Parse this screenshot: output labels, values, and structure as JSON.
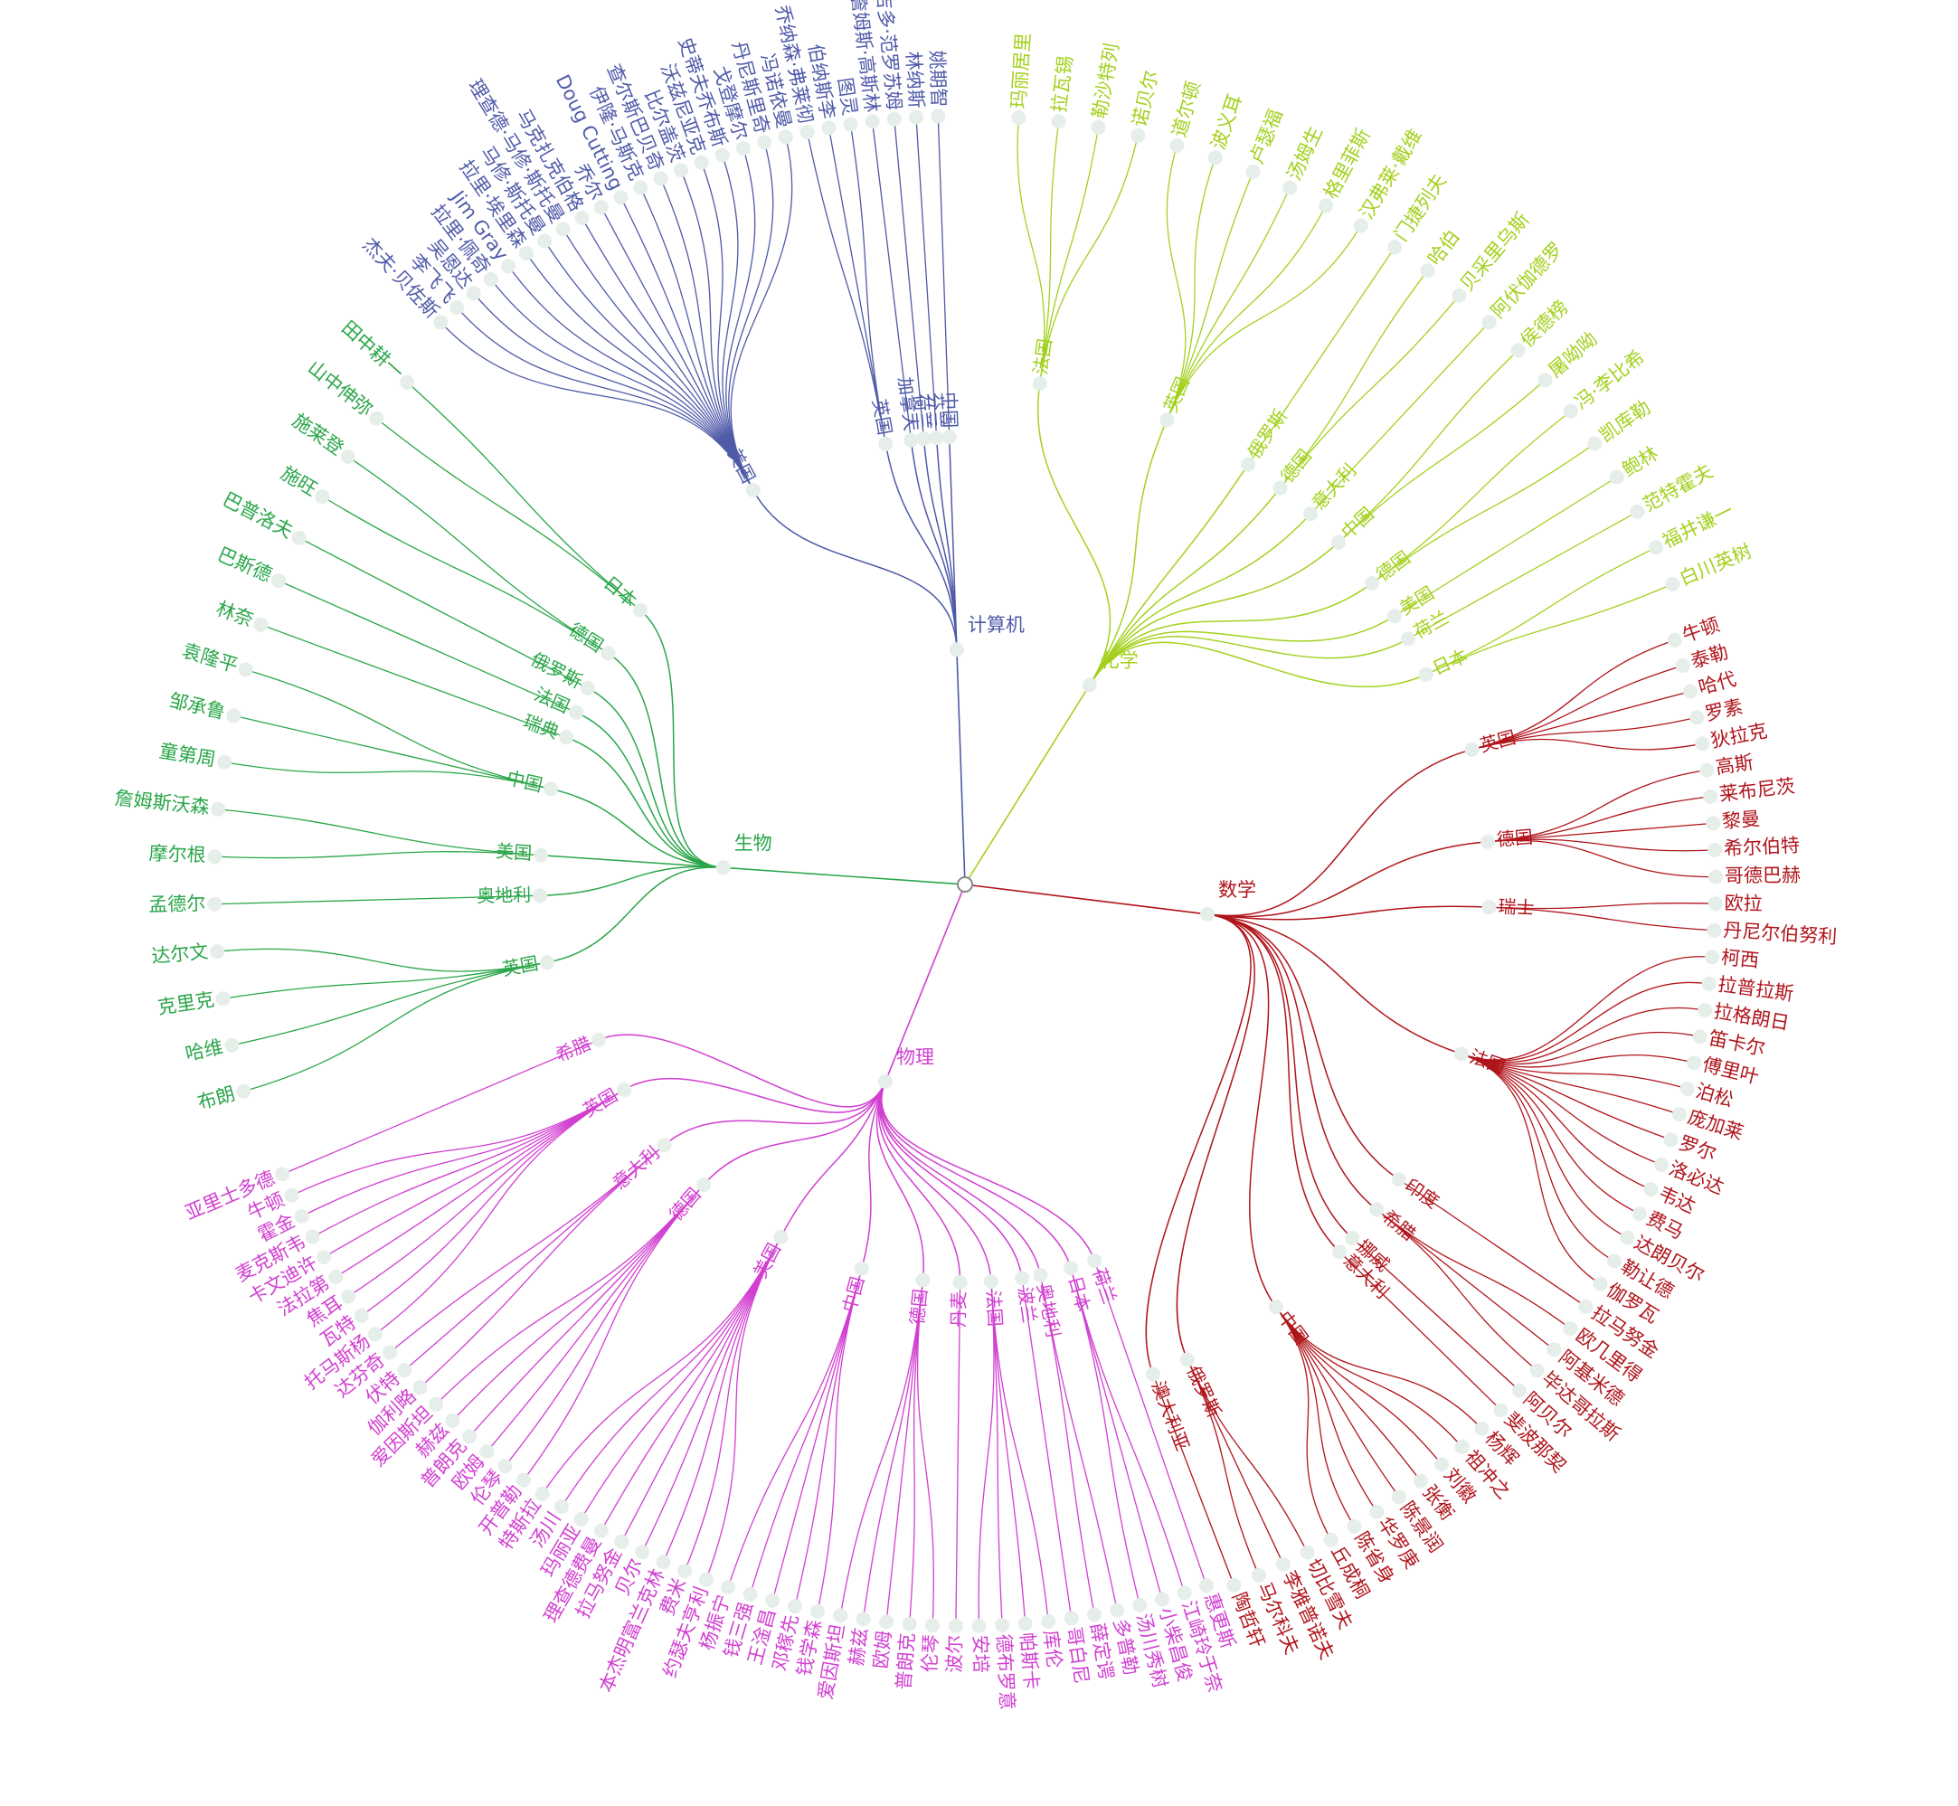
{
  "tree": {
    "root": "",
    "branches": [
      {
        "name": "计算机",
        "color": "#4f5aa8",
        "groups": [
          {
            "name": "美国",
            "leaves": [
              "杰夫·贝佐斯",
              "李飞飞",
              "吴恩达",
              "拉里·佩奇",
              "Jim Gray",
              "拉里·埃里森",
              "马修·斯托曼",
              "理查德·马修·斯托曼",
              "马克扎克伯格",
              "乔尔",
              "Doug Cutting",
              "伊隆·马斯克",
              "查尔斯巴贝奇",
              "比尔盖茨",
              "沃兹尼亚克",
              "史蒂夫乔布斯",
              "戈登摩尔",
              "丹尼斯里奇",
              "冯诺依曼"
            ]
          },
          {
            "name": "英国",
            "leaves": [
              "乔纳森·弗莱彻",
              "伯纳斯李",
              "图灵"
            ]
          },
          {
            "name": "加拿大",
            "leaves": [
              "詹姆斯·高斯林"
            ]
          },
          {
            "name": "荷兰",
            "leaves": [
              "吉多·范罗苏姆"
            ]
          },
          {
            "name": "芬兰",
            "leaves": [
              "林纳斯"
            ]
          },
          {
            "name": "中国",
            "leaves": [
              "姚期智"
            ]
          }
        ]
      },
      {
        "name": "化学",
        "color": "#a3d11e",
        "groups": [
          {
            "name": "法国",
            "leaves": [
              "玛丽居里",
              "拉瓦锡",
              "勒沙特列",
              "诺贝尔"
            ]
          },
          {
            "name": "英国",
            "leaves": [
              "道尔顿",
              "波义耳",
              "卢瑟福",
              "汤姆生",
              "格里菲斯",
              "汉弗莱·戴维"
            ]
          },
          {
            "name": "俄罗斯",
            "leaves": [
              "门捷列夫"
            ]
          },
          {
            "name": "德国",
            "leaves": [
              "哈伯",
              "贝采里乌斯"
            ]
          },
          {
            "name": "意大利",
            "leaves": [
              "阿伏伽德罗"
            ]
          },
          {
            "name": "中国",
            "leaves": [
              "侯德榜",
              "屠呦呦"
            ]
          },
          {
            "name": "德国",
            "leaves": [
              "冯·李比希",
              "凯库勒"
            ]
          },
          {
            "name": "美国",
            "leaves": [
              "鲍林"
            ]
          },
          {
            "name": "荷兰",
            "leaves": [
              "范特霍夫"
            ]
          },
          {
            "name": "日本",
            "leaves": [
              "福井谦一",
              "白川英树"
            ]
          }
        ]
      },
      {
        "name": "数学",
        "color": "#b0141b",
        "groups": [
          {
            "name": "英国",
            "leaves": [
              "牛顿",
              "泰勒",
              "哈代",
              "罗素",
              "狄拉克"
            ]
          },
          {
            "name": "德国",
            "leaves": [
              "高斯",
              "莱布尼茨",
              "黎曼",
              "希尔伯特",
              "哥德巴赫"
            ]
          },
          {
            "name": "瑞士",
            "leaves": [
              "欧拉",
              "丹尼尔伯努利"
            ]
          },
          {
            "name": "法国",
            "leaves": [
              "柯西",
              "拉普拉斯",
              "拉格朗日",
              "笛卡尔",
              "傅里叶",
              "泊松",
              "庞加莱",
              "罗尔",
              "洛必达",
              "韦达",
              "费马",
              "达朗贝尔",
              "勒让德",
              "伽罗瓦"
            ]
          },
          {
            "name": "印度",
            "leaves": [
              "拉马努金"
            ]
          },
          {
            "name": "希腊",
            "leaves": [
              "欧几里得",
              "阿基米德",
              "毕达哥拉斯"
            ]
          },
          {
            "name": "挪威",
            "leaves": [
              "阿贝尔"
            ]
          },
          {
            "name": "意大利",
            "leaves": [
              "斐波那契"
            ]
          },
          {
            "name": "中国",
            "leaves": [
              "杨辉",
              "祖冲之",
              "刘徽",
              "张衡",
              "陈景润",
              "华罗庚",
              "陈省身",
              "丘成桐"
            ]
          },
          {
            "name": "俄罗斯",
            "leaves": [
              "切比雪夫",
              "李雅普诺夫",
              "马尔科夫"
            ]
          },
          {
            "name": "澳大利亚",
            "leaves": [
              "陶哲轩"
            ]
          }
        ]
      },
      {
        "name": "物理",
        "color": "#d13fd1",
        "groups": [
          {
            "name": "荷兰",
            "leaves": [
              "惠更斯"
            ]
          },
          {
            "name": "日本",
            "leaves": [
              "江崎玲于奈",
              "小柴昌俊",
              "汤川秀树"
            ]
          },
          {
            "name": "奥地利",
            "leaves": [
              "多普勒",
              "薛定谔"
            ]
          },
          {
            "name": "波兰",
            "leaves": [
              "哥白尼"
            ]
          },
          {
            "name": "法国",
            "leaves": [
              "库伦",
              "帕斯卡",
              "德布罗意",
              "安培"
            ]
          },
          {
            "name": "丹麦",
            "leaves": [
              "波尔"
            ]
          },
          {
            "name": "德国",
            "leaves": [
              "伦琴",
              "普朗克",
              "欧姆",
              "赫兹",
              "爱因斯坦"
            ]
          },
          {
            "name": "中国",
            "leaves": [
              "钱学森",
              "邓稼先",
              "王淦昌",
              "钱三强",
              "杨振宁"
            ]
          },
          {
            "name": "美国",
            "leaves": [
              "约瑟夫亨利",
              "费米",
              "本杰明富兰克林",
              "贝尔",
              "拉马努金",
              "理查德费曼",
              "玛丽亚",
              "汤川",
              "特斯拉"
            ]
          },
          {
            "name": "德国",
            "leaves": [
              "开普勒",
              "伦琴",
              "欧姆",
              "普朗克",
              "赫兹",
              "爱因斯坦"
            ]
          },
          {
            "name": "意大利",
            "leaves": [
              "伽利略",
              "伏特",
              "达芬奇"
            ]
          },
          {
            "name": "英国",
            "leaves": [
              "托马斯杨",
              "瓦特",
              "焦耳",
              "法拉第",
              "卡文迪许",
              "麦克斯韦",
              "霍金",
              "牛顿"
            ]
          },
          {
            "name": "希腊",
            "leaves": [
              "亚里士多德"
            ]
          }
        ]
      },
      {
        "name": "生物",
        "color": "#2aa649",
        "groups": [
          {
            "name": "英国",
            "leaves": [
              "布朗",
              "哈维",
              "克里克",
              "达尔文"
            ]
          },
          {
            "name": "奥地利",
            "leaves": [
              "孟德尔"
            ]
          },
          {
            "name": "美国",
            "leaves": [
              "摩尔根",
              "詹姆斯沃森"
            ]
          },
          {
            "name": "中国",
            "leaves": [
              "童第周",
              "邹承鲁",
              "袁隆平"
            ]
          },
          {
            "name": "瑞典",
            "leaves": [
              "林奈"
            ]
          },
          {
            "name": "法国",
            "leaves": [
              "巴斯德"
            ]
          },
          {
            "name": "俄罗斯",
            "leaves": [
              "巴普洛夫"
            ]
          },
          {
            "name": "德国",
            "leaves": [
              "施旺",
              "施莱登"
            ]
          },
          {
            "name": "日本",
            "leaves": [
              "山中伸弥",
              "田中耕一"
            ]
          }
        ]
      }
    ]
  }
}
